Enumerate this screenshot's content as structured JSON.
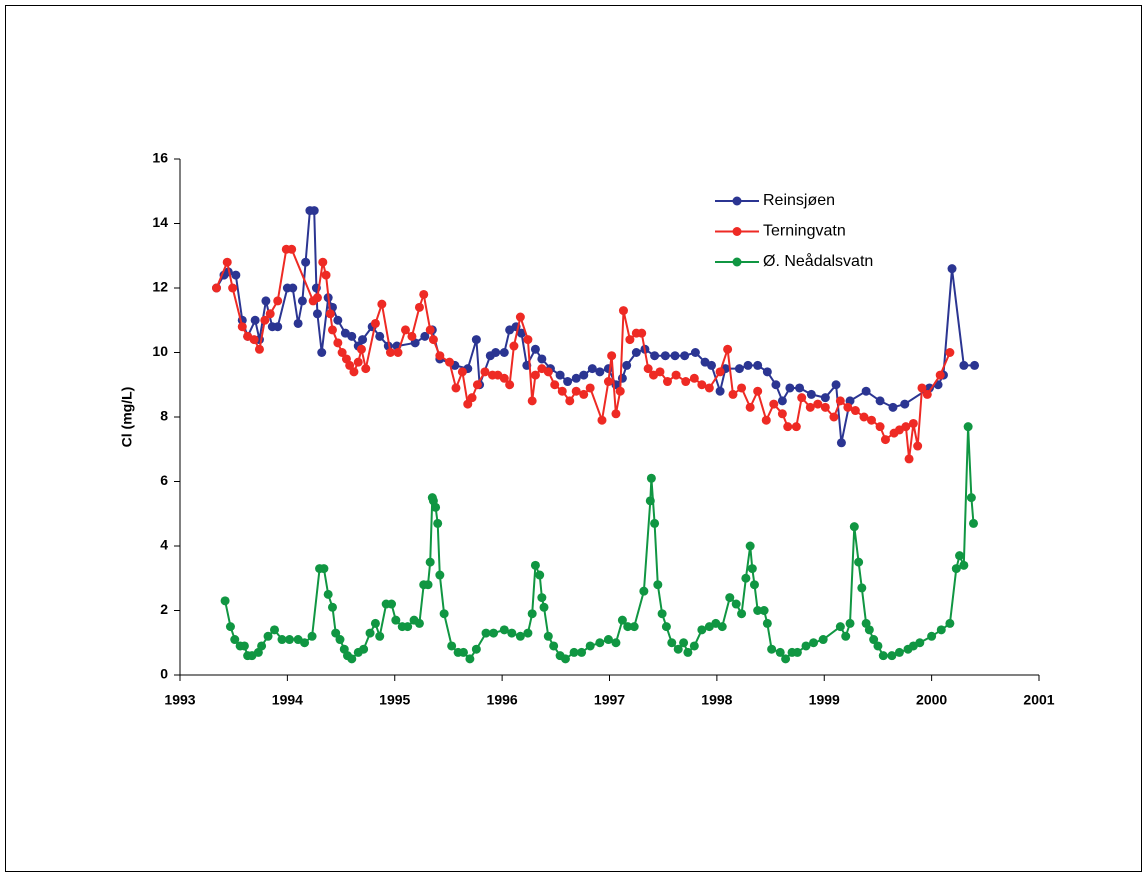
{
  "chart_data": {
    "type": "line",
    "y_label": "Cl (mg/L)",
    "xlim": [
      1993,
      2001
    ],
    "xticks": [
      1993,
      1994,
      1995,
      1996,
      1997,
      1998,
      1999,
      2000,
      2001
    ],
    "ylim": [
      0,
      16
    ],
    "yticks": [
      0,
      2,
      4,
      6,
      8,
      10,
      12,
      14,
      16
    ],
    "grid": false,
    "legend": "top-right",
    "series": [
      {
        "name": "Reinsjøen",
        "color": "#2b3592",
        "x": [
          1993.34,
          1993.41,
          1993.45,
          1993.52,
          1993.58,
          1993.63,
          1993.7,
          1993.74,
          1993.8,
          1993.86,
          1993.91,
          1994.0,
          1994.05,
          1994.1,
          1994.14,
          1994.17,
          1994.21,
          1994.25,
          1994.27,
          1994.28,
          1994.32,
          1994.38,
          1994.42,
          1994.47,
          1994.54,
          1994.6,
          1994.66,
          1994.7,
          1994.79,
          1994.86,
          1994.94,
          1995.02,
          1995.19,
          1995.28,
          1995.35,
          1995.42,
          1995.56,
          1995.68,
          1995.76,
          1995.79,
          1995.89,
          1995.94,
          1996.02,
          1996.07,
          1996.13,
          1996.18,
          1996.23,
          1996.31,
          1996.37,
          1996.45,
          1996.54,
          1996.61,
          1996.69,
          1996.76,
          1996.84,
          1996.91,
          1996.99,
          1997.06,
          1997.12,
          1997.16,
          1997.25,
          1997.33,
          1997.42,
          1997.52,
          1997.61,
          1997.7,
          1997.8,
          1997.89,
          1997.95,
          1998.03,
          1998.08,
          1998.21,
          1998.29,
          1998.38,
          1998.47,
          1998.55,
          1998.61,
          1998.68,
          1998.77,
          1998.88,
          1999.01,
          1999.11,
          1999.16,
          1999.24,
          1999.39,
          1999.52,
          1999.64,
          1999.75,
          1999.98,
          2000.06,
          2000.11,
          2000.19,
          2000.3,
          2000.4
        ],
        "values": [
          12.0,
          12.4,
          12.5,
          12.4,
          11.0,
          10.5,
          11.0,
          10.4,
          11.6,
          10.8,
          10.8,
          12.0,
          12.0,
          10.9,
          11.6,
          12.8,
          14.4,
          14.4,
          12.0,
          11.2,
          10.0,
          11.7,
          11.4,
          11.0,
          10.6,
          10.5,
          10.2,
          10.4,
          10.8,
          10.5,
          10.2,
          10.2,
          10.3,
          10.5,
          10.7,
          9.8,
          9.6,
          9.5,
          10.4,
          9.0,
          9.9,
          10.0,
          10.0,
          10.7,
          10.8,
          10.6,
          9.6,
          10.1,
          9.8,
          9.5,
          9.3,
          9.1,
          9.2,
          9.3,
          9.5,
          9.4,
          9.5,
          9.0,
          9.2,
          9.6,
          10.0,
          10.1,
          9.9,
          9.9,
          9.9,
          9.9,
          10.0,
          9.7,
          9.6,
          8.8,
          9.5,
          9.5,
          9.6,
          9.6,
          9.4,
          9.0,
          8.5,
          8.9,
          8.9,
          8.7,
          8.6,
          9.0,
          7.2,
          8.5,
          8.8,
          8.5,
          8.3,
          8.4,
          8.9,
          9.0,
          9.3,
          12.6,
          9.6,
          9.6
        ]
      },
      {
        "name": "Terningvatn",
        "color": "#ee2a24",
        "x": [
          1993.34,
          1993.44,
          1993.49,
          1993.58,
          1993.63,
          1993.69,
          1993.74,
          1993.79,
          1993.84,
          1993.91,
          1993.99,
          1994.04,
          1994.24,
          1994.28,
          1994.33,
          1994.36,
          1994.4,
          1994.42,
          1994.47,
          1994.51,
          1994.55,
          1994.58,
          1994.62,
          1994.66,
          1994.69,
          1994.73,
          1994.82,
          1994.88,
          1994.96,
          1995.03,
          1995.1,
          1995.16,
          1995.23,
          1995.27,
          1995.33,
          1995.36,
          1995.42,
          1995.51,
          1995.57,
          1995.63,
          1995.68,
          1995.72,
          1995.77,
          1995.84,
          1995.91,
          1995.96,
          1996.02,
          1996.07,
          1996.11,
          1996.17,
          1996.24,
          1996.28,
          1996.31,
          1996.37,
          1996.43,
          1996.49,
          1996.56,
          1996.63,
          1996.69,
          1996.76,
          1996.82,
          1996.93,
          1996.99,
          1997.02,
          1997.06,
          1997.1,
          1997.13,
          1997.19,
          1997.25,
          1997.3,
          1997.36,
          1997.41,
          1997.47,
          1997.54,
          1997.62,
          1997.71,
          1997.79,
          1997.86,
          1997.93,
          1998.03,
          1998.1,
          1998.15,
          1998.23,
          1998.31,
          1998.38,
          1998.46,
          1998.53,
          1998.61,
          1998.66,
          1998.74,
          1998.79,
          1998.87,
          1998.94,
          1999.01,
          1999.09,
          1999.15,
          1999.22,
          1999.29,
          1999.37,
          1999.44,
          1999.52,
          1999.57,
          1999.65,
          1999.7,
          1999.76,
          1999.79,
          1999.83,
          1999.87,
          1999.91,
          1999.96,
          2000.08,
          2000.17
        ],
        "values": [
          12.0,
          12.8,
          12.0,
          10.8,
          10.5,
          10.4,
          10.1,
          11.0,
          11.2,
          11.6,
          13.2,
          13.2,
          11.6,
          11.7,
          12.8,
          12.4,
          11.2,
          10.7,
          10.3,
          10.0,
          9.8,
          9.6,
          9.4,
          9.7,
          10.1,
          9.5,
          10.9,
          11.5,
          10.0,
          10.0,
          10.7,
          10.5,
          11.4,
          11.8,
          10.7,
          10.4,
          9.9,
          9.7,
          8.9,
          9.4,
          8.4,
          8.6,
          9.0,
          9.4,
          9.3,
          9.3,
          9.2,
          9.0,
          10.2,
          11.1,
          10.4,
          8.5,
          9.3,
          9.5,
          9.4,
          9.0,
          8.8,
          8.5,
          8.8,
          8.7,
          8.9,
          7.9,
          9.1,
          9.9,
          8.1,
          8.8,
          11.3,
          10.4,
          10.6,
          10.6,
          9.5,
          9.3,
          9.4,
          9.1,
          9.3,
          9.1,
          9.2,
          9.0,
          8.9,
          9.4,
          10.1,
          8.7,
          8.9,
          8.3,
          8.8,
          7.9,
          8.4,
          8.1,
          7.7,
          7.7,
          8.6,
          8.3,
          8.4,
          8.3,
          8.0,
          8.5,
          8.3,
          8.2,
          8.0,
          7.9,
          7.7,
          7.3,
          7.5,
          7.6,
          7.7,
          6.7,
          7.8,
          7.1,
          8.9,
          8.7,
          9.3,
          10.0
        ]
      },
      {
        "name": "Ø. Neådalsvatn",
        "color": "#109642",
        "x": [
          1993.42,
          1993.47,
          1993.51,
          1993.56,
          1993.6,
          1993.63,
          1993.67,
          1993.73,
          1993.76,
          1993.82,
          1993.88,
          1993.95,
          1994.02,
          1994.1,
          1994.16,
          1994.23,
          1994.3,
          1994.34,
          1994.38,
          1994.42,
          1994.45,
          1994.49,
          1994.53,
          1994.56,
          1994.6,
          1994.66,
          1994.71,
          1994.77,
          1994.82,
          1994.86,
          1994.92,
          1994.97,
          1995.01,
          1995.07,
          1995.12,
          1995.18,
          1995.23,
          1995.27,
          1995.31,
          1995.33,
          1995.35,
          1995.36,
          1995.38,
          1995.4,
          1995.42,
          1995.46,
          1995.53,
          1995.59,
          1995.64,
          1995.7,
          1995.76,
          1995.85,
          1995.92,
          1996.02,
          1996.09,
          1996.17,
          1996.24,
          1996.28,
          1996.31,
          1996.35,
          1996.37,
          1996.39,
          1996.43,
          1996.48,
          1996.54,
          1996.59,
          1996.67,
          1996.74,
          1996.82,
          1996.91,
          1996.99,
          1997.06,
          1997.12,
          1997.17,
          1997.23,
          1997.32,
          1997.38,
          1997.39,
          1997.42,
          1997.45,
          1997.49,
          1997.53,
          1997.58,
          1997.64,
          1997.69,
          1997.73,
          1997.79,
          1997.86,
          1997.93,
          1997.99,
          1998.05,
          1998.12,
          1998.18,
          1998.23,
          1998.27,
          1998.31,
          1998.33,
          1998.35,
          1998.38,
          1998.44,
          1998.47,
          1998.51,
          1998.59,
          1998.64,
          1998.7,
          1998.75,
          1998.83,
          1998.9,
          1998.99,
          1999.15,
          1999.2,
          1999.24,
          1999.28,
          1999.32,
          1999.35,
          1999.39,
          1999.42,
          1999.46,
          1999.5,
          1999.55,
          1999.63,
          1999.7,
          1999.78,
          1999.83,
          1999.89,
          2000.0,
          2000.09,
          2000.17,
          2000.23,
          2000.26,
          2000.3,
          2000.34,
          2000.37,
          2000.39
        ],
        "values": [
          2.3,
          1.5,
          1.1,
          0.9,
          0.9,
          0.6,
          0.6,
          0.7,
          0.9,
          1.2,
          1.4,
          1.1,
          1.1,
          1.1,
          1.0,
          1.2,
          3.3,
          3.3,
          2.5,
          2.1,
          1.3,
          1.1,
          0.8,
          0.6,
          0.5,
          0.7,
          0.8,
          1.3,
          1.6,
          1.2,
          2.2,
          2.2,
          1.7,
          1.5,
          1.5,
          1.7,
          1.6,
          2.8,
          2.8,
          3.5,
          5.5,
          5.4,
          5.2,
          4.7,
          3.1,
          1.9,
          0.9,
          0.7,
          0.7,
          0.5,
          0.8,
          1.3,
          1.3,
          1.4,
          1.3,
          1.2,
          1.3,
          1.9,
          3.4,
          3.1,
          2.4,
          2.1,
          1.2,
          0.9,
          0.6,
          0.5,
          0.7,
          0.7,
          0.9,
          1.0,
          1.1,
          1.0,
          1.7,
          1.5,
          1.5,
          2.6,
          5.4,
          6.1,
          4.7,
          2.8,
          1.9,
          1.5,
          1.0,
          0.8,
          1.0,
          0.7,
          0.9,
          1.4,
          1.5,
          1.6,
          1.5,
          2.4,
          2.2,
          1.9,
          3.0,
          4.0,
          3.3,
          2.8,
          2.0,
          2.0,
          1.6,
          0.8,
          0.7,
          0.5,
          0.7,
          0.7,
          0.9,
          1.0,
          1.1,
          1.5,
          1.2,
          1.6,
          4.6,
          3.5,
          2.7,
          1.6,
          1.4,
          1.1,
          0.9,
          0.6,
          0.6,
          0.7,
          0.8,
          0.9,
          1.0,
          1.2,
          1.4,
          1.6,
          3.3,
          3.7,
          3.4,
          7.7,
          5.5,
          4.7
        ]
      }
    ]
  }
}
